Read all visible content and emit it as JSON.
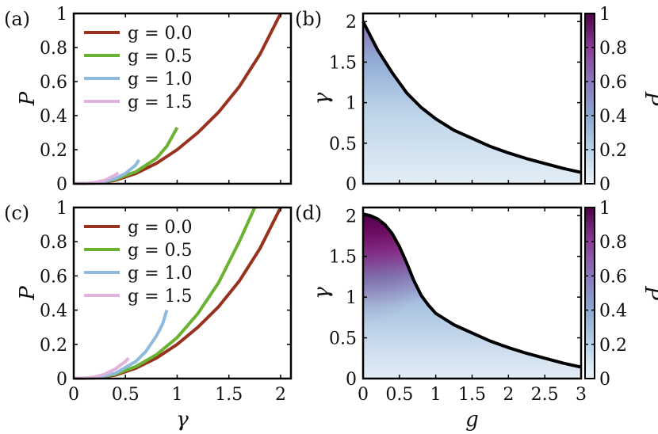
{
  "chart_data": [
    {
      "panel": "(a)",
      "type": "line",
      "xlabel": "",
      "ylabel": "P",
      "xlim": [
        0,
        2.1
      ],
      "ylim": [
        0,
        1
      ],
      "yticks": [
        "0",
        "0.2",
        "0.4",
        "0.6",
        "0.8",
        "1"
      ],
      "series": [
        {
          "name": "g = 0.0",
          "color": "#98321f",
          "x": [
            0,
            0.2,
            0.4,
            0.6,
            0.8,
            1.0,
            1.2,
            1.4,
            1.6,
            1.8,
            2.0
          ],
          "y": [
            0,
            0.003,
            0.02,
            0.06,
            0.12,
            0.2,
            0.3,
            0.42,
            0.57,
            0.76,
            1.0
          ]
        },
        {
          "name": "g = 0.5",
          "color": "#6ab232",
          "x": [
            0,
            0.2,
            0.4,
            0.6,
            0.8,
            0.9,
            1.0
          ],
          "y": [
            0,
            0.003,
            0.025,
            0.07,
            0.15,
            0.22,
            0.33
          ]
        },
        {
          "name": "g = 1.0",
          "color": "#8fb9dd",
          "x": [
            0,
            0.2,
            0.3,
            0.4,
            0.5,
            0.6,
            0.63
          ],
          "y": [
            0,
            0.004,
            0.013,
            0.03,
            0.06,
            0.11,
            0.14
          ]
        },
        {
          "name": "g = 1.5",
          "color": "#dfb3dd",
          "x": [
            0,
            0.1,
            0.2,
            0.3,
            0.4,
            0.43
          ],
          "y": [
            0,
            0.001,
            0.007,
            0.02,
            0.05,
            0.065
          ]
        }
      ]
    },
    {
      "panel": "(b)",
      "type": "heatmap",
      "xlabel": "",
      "ylabel": "γ",
      "xlim": [
        0,
        3
      ],
      "ylim": [
        0,
        2.1
      ],
      "yticks": [
        "0",
        "0.5",
        "1",
        "1.5",
        "2"
      ],
      "colorbar_label": "P",
      "colorbar_ticks": [
        "0",
        "0.2",
        "0.4",
        "0.6",
        "0.8",
        "1"
      ],
      "boundary": {
        "g": [
          0,
          0.2,
          0.4,
          0.6,
          0.8,
          1.0,
          1.25,
          1.5,
          1.75,
          2.0,
          2.25,
          2.5,
          2.75,
          3.0
        ],
        "gamma": [
          2.0,
          1.65,
          1.37,
          1.12,
          0.94,
          0.8,
          0.66,
          0.56,
          0.46,
          0.38,
          0.31,
          0.25,
          0.19,
          0.14
        ]
      }
    },
    {
      "panel": "(c)",
      "type": "line",
      "xlabel": "γ",
      "ylabel": "P",
      "xlim": [
        0,
        2.1
      ],
      "ylim": [
        0,
        1
      ],
      "xticks": [
        "0",
        "0.5",
        "1",
        "1.5",
        "2"
      ],
      "yticks": [
        "0",
        "0.2",
        "0.4",
        "0.6",
        "0.8",
        "1"
      ],
      "series": [
        {
          "name": "g = 0.0",
          "color": "#98321f",
          "x": [
            0,
            0.2,
            0.4,
            0.6,
            0.8,
            1.0,
            1.2,
            1.4,
            1.6,
            1.8,
            2.0
          ],
          "y": [
            0,
            0.003,
            0.02,
            0.06,
            0.12,
            0.2,
            0.3,
            0.42,
            0.57,
            0.76,
            1.0
          ]
        },
        {
          "name": "g = 0.5",
          "color": "#6ab232",
          "x": [
            0,
            0.2,
            0.4,
            0.6,
            0.8,
            1.0,
            1.2,
            1.4,
            1.6,
            1.75
          ],
          "y": [
            0,
            0.004,
            0.025,
            0.07,
            0.14,
            0.24,
            0.38,
            0.56,
            0.8,
            1.0
          ]
        },
        {
          "name": "g = 1.0",
          "color": "#8fb9dd",
          "x": [
            0,
            0.2,
            0.4,
            0.6,
            0.7,
            0.8,
            0.86,
            0.9
          ],
          "y": [
            0,
            0.004,
            0.03,
            0.1,
            0.16,
            0.25,
            0.32,
            0.4
          ]
        },
        {
          "name": "g = 1.5",
          "color": "#dfb3dd",
          "x": [
            0,
            0.1,
            0.2,
            0.3,
            0.4,
            0.5,
            0.53
          ],
          "y": [
            0,
            0.002,
            0.009,
            0.025,
            0.055,
            0.1,
            0.12
          ]
        }
      ]
    },
    {
      "panel": "(d)",
      "type": "heatmap",
      "xlabel": "g",
      "ylabel": "γ",
      "xlim": [
        0,
        3
      ],
      "ylim": [
        0,
        2.1
      ],
      "xticks": [
        "0",
        "0.5",
        "1",
        "1.5",
        "2",
        "2.5",
        "3"
      ],
      "yticks": [
        "0",
        "0.5",
        "1",
        "1.5",
        "2"
      ],
      "colorbar_label": "P",
      "colorbar_ticks": [
        "0",
        "0.2",
        "0.4",
        "0.6",
        "0.8",
        "1"
      ],
      "boundary": {
        "g": [
          0,
          0.1,
          0.2,
          0.3,
          0.4,
          0.5,
          0.6,
          0.7,
          0.8,
          0.9,
          1.0,
          1.25,
          1.5,
          1.75,
          2.0,
          2.25,
          2.5,
          2.75,
          3.0
        ],
        "gamma": [
          2.02,
          2.0,
          1.96,
          1.89,
          1.78,
          1.62,
          1.42,
          1.2,
          1.02,
          0.9,
          0.8,
          0.66,
          0.56,
          0.46,
          0.38,
          0.31,
          0.25,
          0.19,
          0.14
        ]
      }
    }
  ]
}
